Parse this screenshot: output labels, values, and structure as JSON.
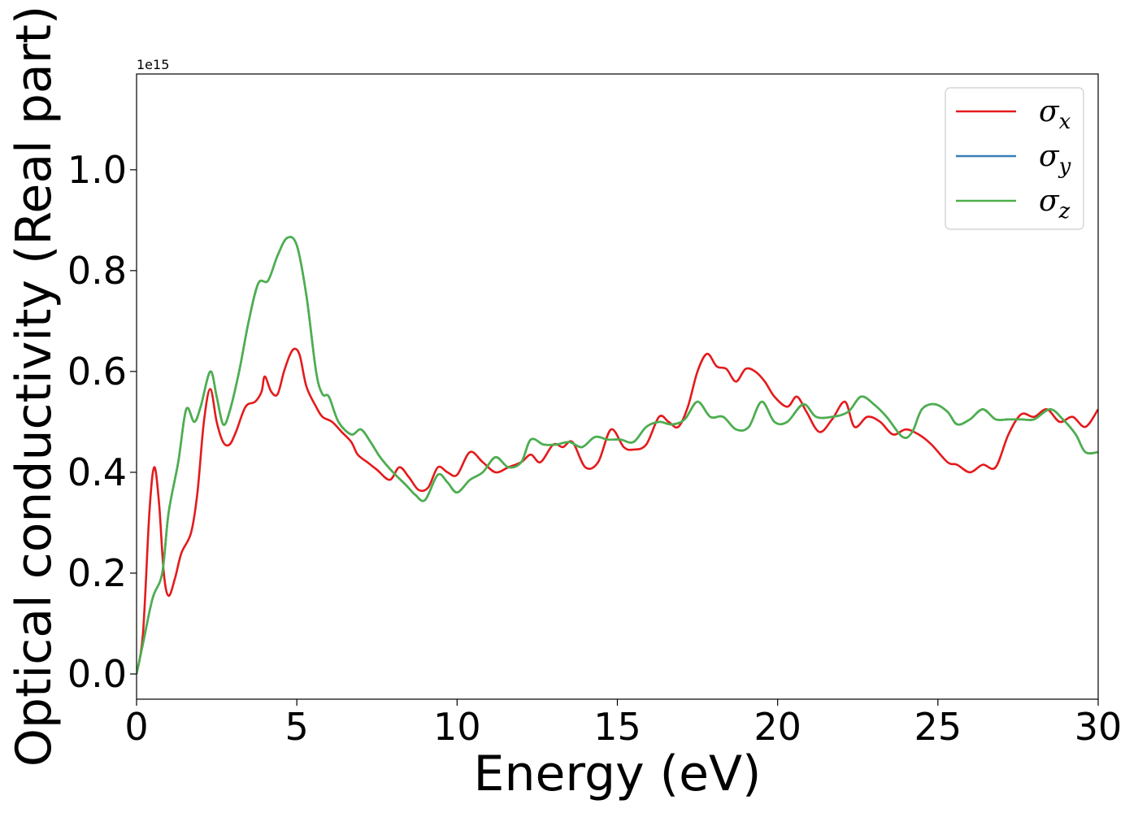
{
  "chart_data": {
    "type": "line",
    "title": "",
    "xlabel": "Energy (eV)",
    "ylabel": "Optical conductivity (Real part)",
    "y_offset_label": "1e15",
    "xlim": [
      0,
      30
    ],
    "ylim": [
      -0.05,
      1.19
    ],
    "x_ticks": [
      0,
      5,
      10,
      15,
      20,
      25,
      30
    ],
    "x_tick_labels": [
      "0",
      "5",
      "10",
      "15",
      "20",
      "25",
      "30"
    ],
    "y_ticks": [
      0.0,
      0.2,
      0.4,
      0.6,
      0.8,
      1.0
    ],
    "y_tick_labels": [
      "0.0",
      "0.2",
      "0.4",
      "0.6",
      "0.8",
      "1.0"
    ],
    "grid": false,
    "legend_position": "top-right",
    "series": [
      {
        "name": "σx",
        "legend_base": "σ",
        "legend_sub": "x",
        "color": "#e41a1c",
        "points": [
          [
            0,
            0
          ],
          [
            0.2,
            0.08
          ],
          [
            0.4,
            0.32
          ],
          [
            0.55,
            0.41
          ],
          [
            0.7,
            0.34
          ],
          [
            0.85,
            0.2
          ],
          [
            1.0,
            0.155
          ],
          [
            1.2,
            0.19
          ],
          [
            1.4,
            0.24
          ],
          [
            1.7,
            0.28
          ],
          [
            1.9,
            0.36
          ],
          [
            2.1,
            0.5
          ],
          [
            2.3,
            0.565
          ],
          [
            2.5,
            0.5
          ],
          [
            2.7,
            0.46
          ],
          [
            2.9,
            0.455
          ],
          [
            3.1,
            0.48
          ],
          [
            3.4,
            0.53
          ],
          [
            3.7,
            0.54
          ],
          [
            3.9,
            0.56
          ],
          [
            4.0,
            0.59
          ],
          [
            4.2,
            0.56
          ],
          [
            4.4,
            0.555
          ],
          [
            4.6,
            0.6
          ],
          [
            4.8,
            0.635
          ],
          [
            4.95,
            0.645
          ],
          [
            5.1,
            0.63
          ],
          [
            5.3,
            0.57
          ],
          [
            5.6,
            0.53
          ],
          [
            5.8,
            0.51
          ],
          [
            6.1,
            0.5
          ],
          [
            6.4,
            0.48
          ],
          [
            6.7,
            0.46
          ],
          [
            6.9,
            0.435
          ],
          [
            7.2,
            0.42
          ],
          [
            7.5,
            0.405
          ],
          [
            7.9,
            0.385
          ],
          [
            8.2,
            0.41
          ],
          [
            8.5,
            0.39
          ],
          [
            8.8,
            0.365
          ],
          [
            9.1,
            0.37
          ],
          [
            9.4,
            0.41
          ],
          [
            9.7,
            0.4
          ],
          [
            10.0,
            0.395
          ],
          [
            10.4,
            0.44
          ],
          [
            10.8,
            0.42
          ],
          [
            11.2,
            0.4
          ],
          [
            11.6,
            0.41
          ],
          [
            12.0,
            0.42
          ],
          [
            12.3,
            0.435
          ],
          [
            12.6,
            0.42
          ],
          [
            13.0,
            0.455
          ],
          [
            13.3,
            0.45
          ],
          [
            13.6,
            0.46
          ],
          [
            14.0,
            0.41
          ],
          [
            14.4,
            0.42
          ],
          [
            14.8,
            0.485
          ],
          [
            15.2,
            0.45
          ],
          [
            15.5,
            0.445
          ],
          [
            15.9,
            0.455
          ],
          [
            16.3,
            0.51
          ],
          [
            16.6,
            0.5
          ],
          [
            16.9,
            0.49
          ],
          [
            17.2,
            0.53
          ],
          [
            17.5,
            0.6
          ],
          [
            17.8,
            0.635
          ],
          [
            18.1,
            0.61
          ],
          [
            18.4,
            0.605
          ],
          [
            18.7,
            0.58
          ],
          [
            19.0,
            0.605
          ],
          [
            19.3,
            0.6
          ],
          [
            19.6,
            0.58
          ],
          [
            19.9,
            0.55
          ],
          [
            20.3,
            0.53
          ],
          [
            20.6,
            0.55
          ],
          [
            20.9,
            0.52
          ],
          [
            21.3,
            0.48
          ],
          [
            21.7,
            0.505
          ],
          [
            22.1,
            0.54
          ],
          [
            22.4,
            0.49
          ],
          [
            22.8,
            0.51
          ],
          [
            23.2,
            0.5
          ],
          [
            23.6,
            0.475
          ],
          [
            24.0,
            0.485
          ],
          [
            24.4,
            0.475
          ],
          [
            24.8,
            0.455
          ],
          [
            25.3,
            0.42
          ],
          [
            25.6,
            0.415
          ],
          [
            26.0,
            0.4
          ],
          [
            26.4,
            0.415
          ],
          [
            26.8,
            0.41
          ],
          [
            27.2,
            0.475
          ],
          [
            27.6,
            0.515
          ],
          [
            28.0,
            0.51
          ],
          [
            28.4,
            0.525
          ],
          [
            28.8,
            0.5
          ],
          [
            29.2,
            0.51
          ],
          [
            29.6,
            0.49
          ],
          [
            30.0,
            0.525
          ]
        ]
      },
      {
        "name": "σy",
        "legend_base": "σ",
        "legend_sub": "y",
        "color": "#377eb8",
        "points": [
          [
            0,
            0
          ],
          [
            0.2,
            0.06
          ],
          [
            0.5,
            0.15
          ],
          [
            0.8,
            0.2
          ],
          [
            1.0,
            0.32
          ],
          [
            1.3,
            0.42
          ],
          [
            1.55,
            0.525
          ],
          [
            1.8,
            0.5
          ],
          [
            2.0,
            0.53
          ],
          [
            2.3,
            0.6
          ],
          [
            2.5,
            0.55
          ],
          [
            2.7,
            0.495
          ],
          [
            2.9,
            0.52
          ],
          [
            3.2,
            0.6
          ],
          [
            3.5,
            0.7
          ],
          [
            3.8,
            0.775
          ],
          [
            4.1,
            0.78
          ],
          [
            4.4,
            0.83
          ],
          [
            4.7,
            0.865
          ],
          [
            5.0,
            0.85
          ],
          [
            5.3,
            0.75
          ],
          [
            5.6,
            0.6
          ],
          [
            5.8,
            0.555
          ],
          [
            6.0,
            0.55
          ],
          [
            6.3,
            0.5
          ],
          [
            6.7,
            0.475
          ],
          [
            7.0,
            0.485
          ],
          [
            7.3,
            0.46
          ],
          [
            7.6,
            0.43
          ],
          [
            8.0,
            0.4
          ],
          [
            8.4,
            0.375
          ],
          [
            8.7,
            0.355
          ],
          [
            9.0,
            0.345
          ],
          [
            9.4,
            0.395
          ],
          [
            9.7,
            0.38
          ],
          [
            10.0,
            0.36
          ],
          [
            10.4,
            0.385
          ],
          [
            10.8,
            0.4
          ],
          [
            11.2,
            0.43
          ],
          [
            11.6,
            0.41
          ],
          [
            12.0,
            0.42
          ],
          [
            12.3,
            0.465
          ],
          [
            12.7,
            0.455
          ],
          [
            13.1,
            0.455
          ],
          [
            13.5,
            0.46
          ],
          [
            13.9,
            0.45
          ],
          [
            14.3,
            0.47
          ],
          [
            14.7,
            0.465
          ],
          [
            15.1,
            0.465
          ],
          [
            15.5,
            0.46
          ],
          [
            15.9,
            0.49
          ],
          [
            16.3,
            0.5
          ],
          [
            16.7,
            0.495
          ],
          [
            17.1,
            0.505
          ],
          [
            17.5,
            0.54
          ],
          [
            17.9,
            0.51
          ],
          [
            18.3,
            0.51
          ],
          [
            18.7,
            0.485
          ],
          [
            19.1,
            0.49
          ],
          [
            19.5,
            0.54
          ],
          [
            19.9,
            0.5
          ],
          [
            20.3,
            0.5
          ],
          [
            20.8,
            0.535
          ],
          [
            21.2,
            0.51
          ],
          [
            21.7,
            0.51
          ],
          [
            22.2,
            0.52
          ],
          [
            22.6,
            0.55
          ],
          [
            23.0,
            0.535
          ],
          [
            23.4,
            0.51
          ],
          [
            23.9,
            0.47
          ],
          [
            24.2,
            0.48
          ],
          [
            24.5,
            0.525
          ],
          [
            24.9,
            0.535
          ],
          [
            25.3,
            0.52
          ],
          [
            25.6,
            0.495
          ],
          [
            26.0,
            0.505
          ],
          [
            26.4,
            0.525
          ],
          [
            26.8,
            0.505
          ],
          [
            27.2,
            0.505
          ],
          [
            27.6,
            0.505
          ],
          [
            28.0,
            0.505
          ],
          [
            28.5,
            0.525
          ],
          [
            28.9,
            0.505
          ],
          [
            29.3,
            0.475
          ],
          [
            29.6,
            0.44
          ],
          [
            30.0,
            0.44
          ]
        ]
      },
      {
        "name": "σz",
        "legend_base": "σ",
        "legend_sub": "z",
        "color": "#4daf4a",
        "points": [
          [
            0,
            0
          ],
          [
            0.2,
            0.06
          ],
          [
            0.5,
            0.15
          ],
          [
            0.8,
            0.2
          ],
          [
            1.0,
            0.32
          ],
          [
            1.3,
            0.42
          ],
          [
            1.55,
            0.525
          ],
          [
            1.8,
            0.5
          ],
          [
            2.0,
            0.53
          ],
          [
            2.3,
            0.6
          ],
          [
            2.5,
            0.55
          ],
          [
            2.7,
            0.495
          ],
          [
            2.9,
            0.52
          ],
          [
            3.2,
            0.6
          ],
          [
            3.5,
            0.7
          ],
          [
            3.8,
            0.775
          ],
          [
            4.1,
            0.78
          ],
          [
            4.4,
            0.83
          ],
          [
            4.7,
            0.865
          ],
          [
            5.0,
            0.85
          ],
          [
            5.3,
            0.75
          ],
          [
            5.6,
            0.6
          ],
          [
            5.8,
            0.555
          ],
          [
            6.0,
            0.55
          ],
          [
            6.3,
            0.5
          ],
          [
            6.7,
            0.475
          ],
          [
            7.0,
            0.485
          ],
          [
            7.3,
            0.46
          ],
          [
            7.6,
            0.43
          ],
          [
            8.0,
            0.4
          ],
          [
            8.4,
            0.375
          ],
          [
            8.7,
            0.355
          ],
          [
            9.0,
            0.345
          ],
          [
            9.4,
            0.395
          ],
          [
            9.7,
            0.38
          ],
          [
            10.0,
            0.36
          ],
          [
            10.4,
            0.385
          ],
          [
            10.8,
            0.4
          ],
          [
            11.2,
            0.43
          ],
          [
            11.6,
            0.41
          ],
          [
            12.0,
            0.42
          ],
          [
            12.3,
            0.465
          ],
          [
            12.7,
            0.455
          ],
          [
            13.1,
            0.455
          ],
          [
            13.5,
            0.46
          ],
          [
            13.9,
            0.45
          ],
          [
            14.3,
            0.47
          ],
          [
            14.7,
            0.465
          ],
          [
            15.1,
            0.465
          ],
          [
            15.5,
            0.46
          ],
          [
            15.9,
            0.49
          ],
          [
            16.3,
            0.5
          ],
          [
            16.7,
            0.495
          ],
          [
            17.1,
            0.505
          ],
          [
            17.5,
            0.54
          ],
          [
            17.9,
            0.51
          ],
          [
            18.3,
            0.51
          ],
          [
            18.7,
            0.485
          ],
          [
            19.1,
            0.49
          ],
          [
            19.5,
            0.54
          ],
          [
            19.9,
            0.5
          ],
          [
            20.3,
            0.5
          ],
          [
            20.8,
            0.535
          ],
          [
            21.2,
            0.51
          ],
          [
            21.7,
            0.51
          ],
          [
            22.2,
            0.52
          ],
          [
            22.6,
            0.55
          ],
          [
            23.0,
            0.535
          ],
          [
            23.4,
            0.51
          ],
          [
            23.9,
            0.47
          ],
          [
            24.2,
            0.48
          ],
          [
            24.5,
            0.525
          ],
          [
            24.9,
            0.535
          ],
          [
            25.3,
            0.52
          ],
          [
            25.6,
            0.495
          ],
          [
            26.0,
            0.505
          ],
          [
            26.4,
            0.525
          ],
          [
            26.8,
            0.505
          ],
          [
            27.2,
            0.505
          ],
          [
            27.6,
            0.505
          ],
          [
            28.0,
            0.505
          ],
          [
            28.5,
            0.525
          ],
          [
            28.9,
            0.505
          ],
          [
            29.3,
            0.475
          ],
          [
            29.6,
            0.44
          ],
          [
            30.0,
            0.44
          ]
        ]
      }
    ]
  }
}
